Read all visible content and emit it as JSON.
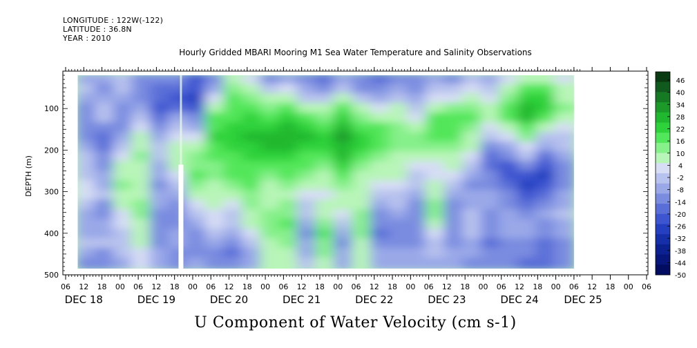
{
  "header": {
    "longitude": "LONGITUDE : 122W(-122)",
    "latitude": "LATITUDE : 36.8N",
    "year": "YEAR : 2010"
  },
  "chart_data": {
    "type": "heatmap",
    "title": "Hourly Gridded MBARI Mooring M1 Sea Water Temperature and Salinity Observations",
    "bottom_title": "U Component of Water Velocity (cm s-1)",
    "ylabel": "DEPTH (m)",
    "xlabel": "",
    "ylim": [
      500,
      10
    ],
    "y_ticks": [
      "100",
      "200",
      "300",
      "400",
      "500"
    ],
    "x_hour_ticks": [
      "06",
      "12",
      "18",
      "00",
      "06",
      "12",
      "18",
      "00",
      "06",
      "12",
      "18",
      "00",
      "06",
      "12",
      "18",
      "00",
      "06",
      "12",
      "18",
      "00",
      "06",
      "12",
      "18",
      "00",
      "06",
      "12",
      "18",
      "00",
      "06",
      "12",
      "18",
      "00",
      "06"
    ],
    "x_day_labels": [
      "DEC 18",
      "DEC 19",
      "DEC 20",
      "DEC 21",
      "DEC 22",
      "DEC 23",
      "DEC 24",
      "DEC 25"
    ],
    "data_start": "DEC 18 10:00",
    "data_end": "DEC 25 06:00",
    "data_depth_range_m": [
      20,
      485
    ],
    "colorbar_labels": [
      "46",
      "40",
      "34",
      "28",
      "22",
      "16",
      "10",
      "4",
      "-2",
      "-8",
      "-14",
      "-20",
      "-26",
      "-32",
      "-38",
      "-44",
      "-50"
    ],
    "colorbar_range": [
      -50,
      50
    ],
    "colorbar_colors": [
      "#0a3a12",
      "#115a1e",
      "#167a24",
      "#1b9a2a",
      "#20b82f",
      "#2ed23a",
      "#52e65a",
      "#86f08a",
      "#b8f5b8",
      "#d6ddf4",
      "#b8c2ee",
      "#9aa8e8",
      "#7a8ce0",
      "#5a6ed8",
      "#3d55d0",
      "#2440c0",
      "#152fa8",
      "#0c2190",
      "#06167a",
      "#020c60"
    ],
    "missing_gap": "DEC 19 20:00",
    "columns": [
      {
        "t": "DEC 18 12",
        "cells": [
          -6,
          -4,
          -5,
          -10,
          -12,
          -14,
          -10,
          -6,
          -4,
          -2,
          0,
          2,
          4,
          -2,
          -6,
          -8,
          -5,
          -4,
          -8,
          -10
        ]
      },
      {
        "t": "DEC 18 18",
        "cells": [
          -8,
          -10,
          -6,
          -4,
          -2,
          -10,
          -16,
          -18,
          -14,
          -12,
          -8,
          -6,
          -4,
          -10,
          -14,
          -8,
          -6,
          -4,
          -10,
          -12
        ]
      },
      {
        "t": "DEC 19 00",
        "cells": [
          -4,
          -2,
          -6,
          -10,
          -14,
          -12,
          -8,
          -4,
          2,
          6,
          10,
          12,
          8,
          6,
          4,
          2,
          0,
          -2,
          -4,
          -6
        ]
      },
      {
        "t": "DEC 19 06",
        "cells": [
          -10,
          -14,
          -12,
          -8,
          -2,
          4,
          8,
          10,
          12,
          10,
          8,
          6,
          10,
          12,
          14,
          10,
          8,
          6,
          4,
          2
        ]
      },
      {
        "t": "DEC 19 12",
        "cells": [
          -12,
          -16,
          -18,
          -20,
          -16,
          -10,
          -6,
          -4,
          -2,
          -6,
          -8,
          -10,
          -8,
          -6,
          -10,
          -12,
          -14,
          -10,
          -8,
          -6
        ]
      },
      {
        "t": "DEC 19 18",
        "cells": [
          -14,
          -18,
          -20,
          -16,
          -8,
          -2,
          4,
          8,
          10,
          8,
          4,
          -4,
          -8,
          -10,
          -12,
          -10,
          -8,
          -6,
          -10,
          -12
        ]
      },
      {
        "t": "DEC 20 00",
        "cells": [
          -20,
          -24,
          -26,
          -22,
          -14,
          -6,
          2,
          8,
          12,
          14,
          16,
          12,
          8,
          4,
          -2,
          -8,
          -12,
          -14,
          -10,
          -8
        ]
      },
      {
        "t": "DEC 20 06",
        "cells": [
          -10,
          -6,
          2,
          10,
          16,
          20,
          22,
          20,
          16,
          14,
          12,
          10,
          8,
          6,
          4,
          2,
          -2,
          -6,
          -10,
          -12
        ]
      },
      {
        "t": "DEC 20 12",
        "cells": [
          8,
          12,
          16,
          18,
          20,
          22,
          24,
          22,
          20,
          18,
          16,
          12,
          8,
          4,
          0,
          -4,
          -8,
          -12,
          -16,
          -14
        ]
      },
      {
        "t": "DEC 20 18",
        "cells": [
          4,
          8,
          14,
          18,
          22,
          24,
          26,
          24,
          22,
          20,
          18,
          16,
          14,
          12,
          10,
          6,
          2,
          -2,
          -6,
          -8
        ]
      },
      {
        "t": "DEC 21 00",
        "cells": [
          -10,
          -4,
          6,
          14,
          20,
          24,
          28,
          26,
          22,
          18,
          14,
          10,
          6,
          8,
          12,
          14,
          12,
          10,
          8,
          6
        ]
      },
      {
        "t": "DEC 21 06",
        "cells": [
          -6,
          2,
          10,
          18,
          24,
          28,
          30,
          28,
          24,
          20,
          16,
          12,
          10,
          12,
          14,
          16,
          14,
          12,
          10,
          8
        ]
      },
      {
        "t": "DEC 21 12",
        "cells": [
          -14,
          -8,
          0,
          8,
          16,
          22,
          26,
          24,
          20,
          16,
          12,
          8,
          4,
          0,
          -4,
          -8,
          -10,
          -8,
          -6,
          -4
        ]
      },
      {
        "t": "DEC 21 18",
        "cells": [
          -18,
          -12,
          -4,
          6,
          14,
          20,
          24,
          22,
          18,
          14,
          10,
          6,
          2,
          6,
          10,
          14,
          16,
          14,
          12,
          10
        ]
      },
      {
        "t": "DEC 22 00",
        "cells": [
          -8,
          0,
          8,
          16,
          22,
          28,
          32,
          30,
          26,
          22,
          18,
          14,
          10,
          6,
          2,
          -4,
          -8,
          -10,
          -8,
          -6
        ]
      },
      {
        "t": "DEC 22 06",
        "cells": [
          -14,
          -10,
          -2,
          6,
          14,
          20,
          24,
          22,
          18,
          14,
          10,
          6,
          8,
          10,
          12,
          14,
          12,
          10,
          8,
          6
        ]
      },
      {
        "t": "DEC 22 12",
        "cells": [
          -16,
          -12,
          -6,
          2,
          10,
          16,
          20,
          18,
          14,
          10,
          6,
          2,
          -2,
          -6,
          -10,
          -14,
          -16,
          -12,
          -8,
          -6
        ]
      },
      {
        "t": "DEC 22 18",
        "cells": [
          -10,
          -6,
          0,
          6,
          10,
          12,
          14,
          12,
          10,
          8,
          6,
          4,
          0,
          -4,
          -8,
          -10,
          -12,
          -10,
          -8,
          -6
        ]
      },
      {
        "t": "DEC 23 00",
        "cells": [
          -14,
          -10,
          -6,
          -2,
          4,
          10,
          14,
          12,
          8,
          4,
          0,
          -4,
          -8,
          -10,
          -12,
          -14,
          -12,
          -10,
          -8,
          -6
        ]
      },
      {
        "t": "DEC 23 06",
        "cells": [
          -6,
          -2,
          4,
          10,
          16,
          18,
          16,
          12,
          8,
          4,
          2,
          6,
          10,
          14,
          12,
          8,
          4,
          0,
          -4,
          -6
        ]
      },
      {
        "t": "DEC 23 12",
        "cells": [
          -10,
          -4,
          4,
          12,
          18,
          20,
          18,
          14,
          10,
          6,
          2,
          -2,
          -6,
          -10,
          -12,
          -14,
          -12,
          -10,
          -8,
          -6
        ]
      },
      {
        "t": "DEC 23 18",
        "cells": [
          -4,
          2,
          8,
          14,
          16,
          14,
          10,
          6,
          2,
          -2,
          -6,
          -10,
          -8,
          -6,
          -4,
          -2,
          -4,
          -6,
          -8,
          -10
        ]
      },
      {
        "t": "DEC 24 00",
        "cells": [
          -6,
          -2,
          4,
          8,
          6,
          2,
          -4,
          -10,
          -16,
          -18,
          -14,
          -10,
          -6,
          -8,
          -10,
          -12,
          -14,
          -16,
          -14,
          -12
        ]
      },
      {
        "t": "DEC 24 06",
        "cells": [
          2,
          8,
          14,
          20,
          16,
          10,
          4,
          -6,
          -14,
          -20,
          -22,
          -18,
          -12,
          -10,
          -8,
          -6,
          -8,
          -10,
          -12,
          -14
        ]
      },
      {
        "t": "DEC 24 12",
        "cells": [
          8,
          16,
          24,
          28,
          26,
          20,
          12,
          4,
          -4,
          -12,
          -20,
          -26,
          -24,
          -18,
          -12,
          -8,
          -6,
          -10,
          -14,
          -16
        ]
      },
      {
        "t": "DEC 24 18",
        "cells": [
          10,
          18,
          24,
          22,
          16,
          8,
          0,
          -8,
          -16,
          -22,
          -26,
          -24,
          -18,
          -12,
          -8,
          -10,
          -12,
          -16,
          -18,
          -16
        ]
      },
      {
        "t": "DEC 25 00",
        "cells": [
          2,
          6,
          10,
          12,
          8,
          4,
          0,
          -4,
          -8,
          -12,
          -14,
          -12,
          -8,
          -6,
          -4,
          -6,
          -8,
          -10,
          -12,
          -10
        ]
      }
    ]
  }
}
